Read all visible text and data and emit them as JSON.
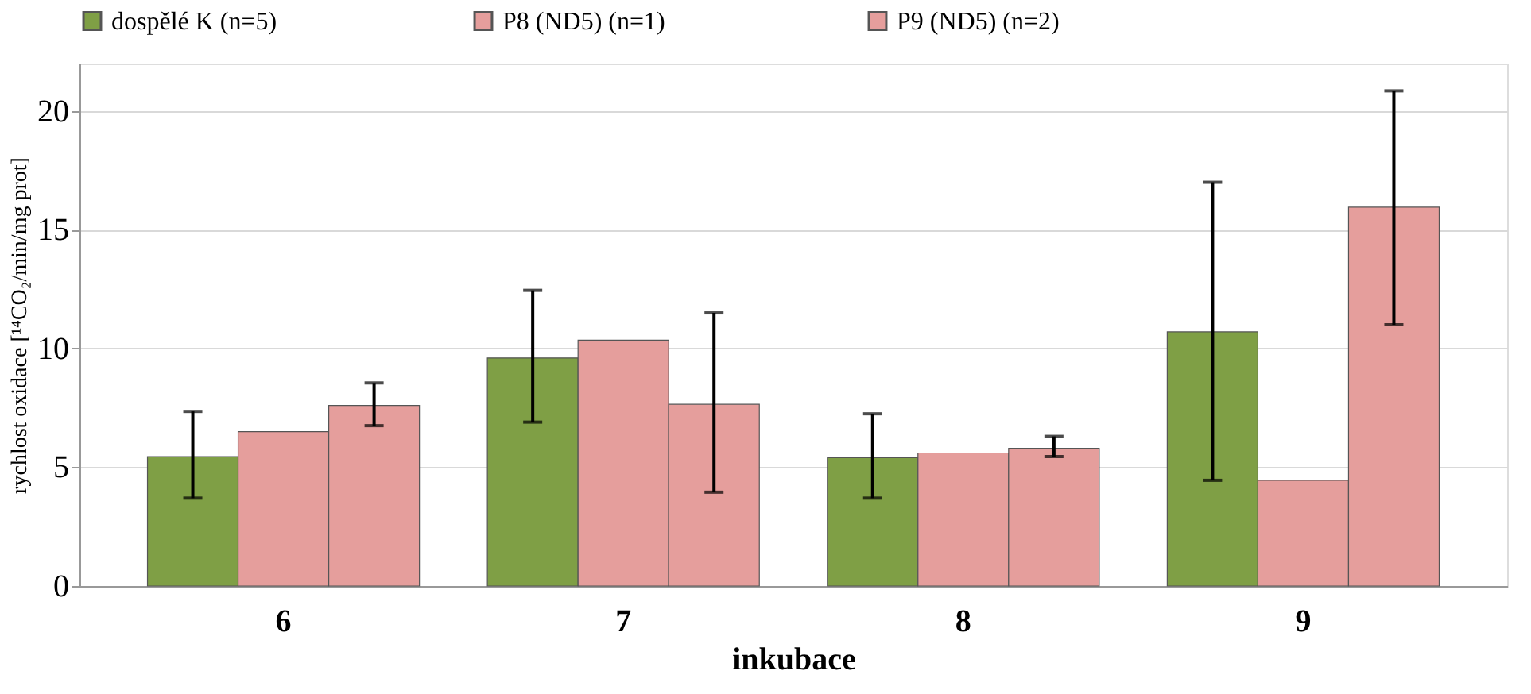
{
  "chart_data": {
    "type": "bar",
    "xlabel": "inkubace",
    "ylabel": "rychlost oxidace [¹⁴CO₂/min/mg prot]",
    "categories": [
      "6",
      "7",
      "8",
      "9"
    ],
    "series": [
      {
        "name": "dospělé K (n=5)",
        "color": "#7f9f45",
        "values": [
          5.45,
          9.6,
          5.4,
          10.7
        ],
        "errors": [
          [
            3.7,
            7.35
          ],
          [
            6.9,
            12.45
          ],
          [
            3.7,
            7.25
          ],
          [
            4.45,
            17.0
          ]
        ]
      },
      {
        "name": "P8 (ND5)  (n=1)",
        "color": "#e59e9c",
        "values": [
          6.5,
          10.35,
          5.6,
          4.45
        ]
      },
      {
        "name": "P9 (ND5) (n=2)",
        "color": "#e59e9c",
        "values": [
          7.6,
          7.65,
          5.8,
          15.95
        ],
        "errors": [
          [
            6.75,
            8.55
          ],
          [
            3.95,
            11.5
          ],
          [
            5.45,
            6.3
          ],
          [
            11.0,
            20.85
          ]
        ]
      }
    ],
    "ylim": [
      0,
      22
    ],
    "yticks": [
      0,
      5,
      10,
      15,
      20
    ],
    "grid": "y",
    "legend": "top"
  }
}
